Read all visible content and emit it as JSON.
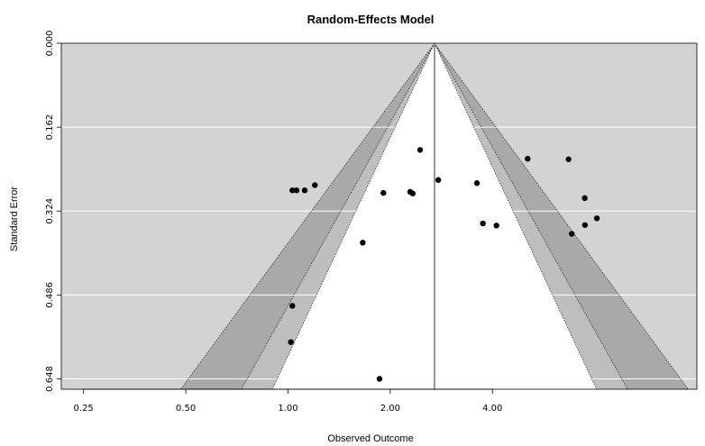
{
  "chart_data": {
    "type": "scatter",
    "subtype": "funnel-plot",
    "title": "Random-Effects Model",
    "xlabel": "Observed Outcome",
    "ylabel": "Standard Error",
    "x_scale": "log",
    "xlim": [
      0.215,
      16.0
    ],
    "ylim": [
      0.0,
      0.668
    ],
    "x_ticks": [
      0.25,
      0.5,
      1.0,
      2.0,
      4.0
    ],
    "x_tick_labels": [
      "0.25",
      "0.50",
      "1.00",
      "2.00",
      "4.00"
    ],
    "y_ticks": [
      0.0,
      0.162,
      0.324,
      0.486,
      0.648
    ],
    "y_tick_labels": [
      "0.000",
      "0.162",
      "0.324",
      "0.486",
      "0.648"
    ],
    "estimate": 2.7,
    "grid": true,
    "colors": {
      "panel_background": "#d3d3d3",
      "inner_funnel": "#ffffff",
      "middle_contour": "#bebebe",
      "outer_contour": "#a9a9a9",
      "points": "#000000",
      "estimate_line": "#808080",
      "gridlines": "#ffffff"
    },
    "points": [
      {
        "x": 2.45,
        "y": 0.206
      },
      {
        "x": 1.03,
        "y": 0.284
      },
      {
        "x": 1.06,
        "y": 0.284
      },
      {
        "x": 1.12,
        "y": 0.284
      },
      {
        "x": 1.2,
        "y": 0.274
      },
      {
        "x": 1.91,
        "y": 0.289
      },
      {
        "x": 2.29,
        "y": 0.287
      },
      {
        "x": 2.33,
        "y": 0.29
      },
      {
        "x": 2.77,
        "y": 0.264
      },
      {
        "x": 3.6,
        "y": 0.27
      },
      {
        "x": 3.75,
        "y": 0.348
      },
      {
        "x": 4.11,
        "y": 0.352
      },
      {
        "x": 5.08,
        "y": 0.223
      },
      {
        "x": 6.7,
        "y": 0.224
      },
      {
        "x": 7.48,
        "y": 0.299
      },
      {
        "x": 8.12,
        "y": 0.338
      },
      {
        "x": 6.85,
        "y": 0.368
      },
      {
        "x": 7.49,
        "y": 0.351
      },
      {
        "x": 1.66,
        "y": 0.385
      },
      {
        "x": 1.03,
        "y": 0.507
      },
      {
        "x": 1.02,
        "y": 0.577
      },
      {
        "x": 1.86,
        "y": 0.648
      }
    ],
    "contours": {
      "z_inner": 1.645,
      "z_middle": 1.96,
      "z_outer": 2.576
    }
  }
}
